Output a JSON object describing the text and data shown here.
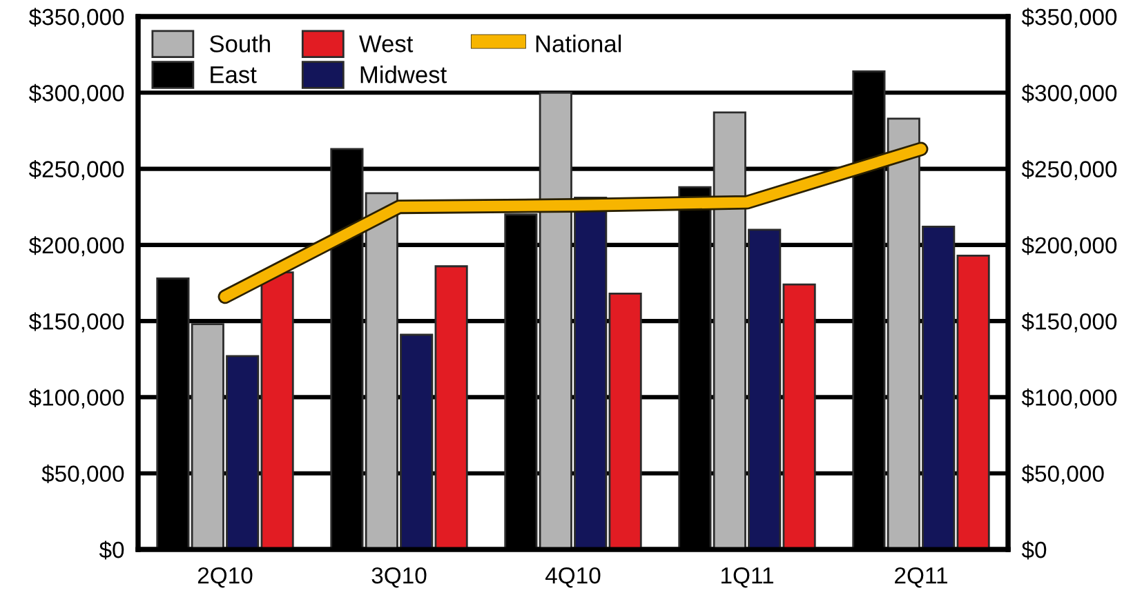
{
  "chart_data": {
    "type": "bar",
    "categories": [
      "2Q10",
      "3Q10",
      "4Q10",
      "1Q11",
      "2Q11"
    ],
    "series": [
      {
        "name": "East",
        "color": "#000000",
        "values": [
          178000,
          263000,
          220000,
          238000,
          314000
        ]
      },
      {
        "name": "South",
        "color": "#b3b3b3",
        "values": [
          148000,
          234000,
          300000,
          287000,
          283000
        ]
      },
      {
        "name": "Midwest",
        "color": "#13155a",
        "values": [
          127000,
          141000,
          231000,
          210000,
          212000
        ]
      },
      {
        "name": "West",
        "color": "#e21c23",
        "values": [
          182000,
          186000,
          168000,
          174000,
          193000
        ]
      },
      {
        "name": "National",
        "type": "line",
        "color": "#f7b500",
        "values": [
          166000,
          225000,
          226000,
          228000,
          263000
        ]
      }
    ],
    "ylim": [
      0,
      350000
    ],
    "yticks": [
      {
        "value": 0,
        "label": "$0"
      },
      {
        "value": 50000,
        "label": "$50,000"
      },
      {
        "value": 100000,
        "label": "$100,000"
      },
      {
        "value": 150000,
        "label": "$150,000"
      },
      {
        "value": 200000,
        "label": "$200,000"
      },
      {
        "value": 250000,
        "label": "$250,000"
      },
      {
        "value": 300000,
        "label": "$300,000"
      },
      {
        "value": 350000,
        "label": "$350,000"
      }
    ],
    "y2lim": [
      0,
      350000
    ],
    "y2ticks": [
      {
        "value": 0,
        "label": "$0"
      },
      {
        "value": 50000,
        "label": "$50,000"
      },
      {
        "value": 100000,
        "label": "$100,000"
      },
      {
        "value": 150000,
        "label": "$150,000"
      },
      {
        "value": 200000,
        "label": "$200,000"
      },
      {
        "value": 250000,
        "label": "$250,000"
      },
      {
        "value": 300000,
        "label": "$300,000"
      },
      {
        "value": 350000,
        "label": "$350,000"
      }
    ],
    "grid": "y",
    "legend": "top left"
  }
}
